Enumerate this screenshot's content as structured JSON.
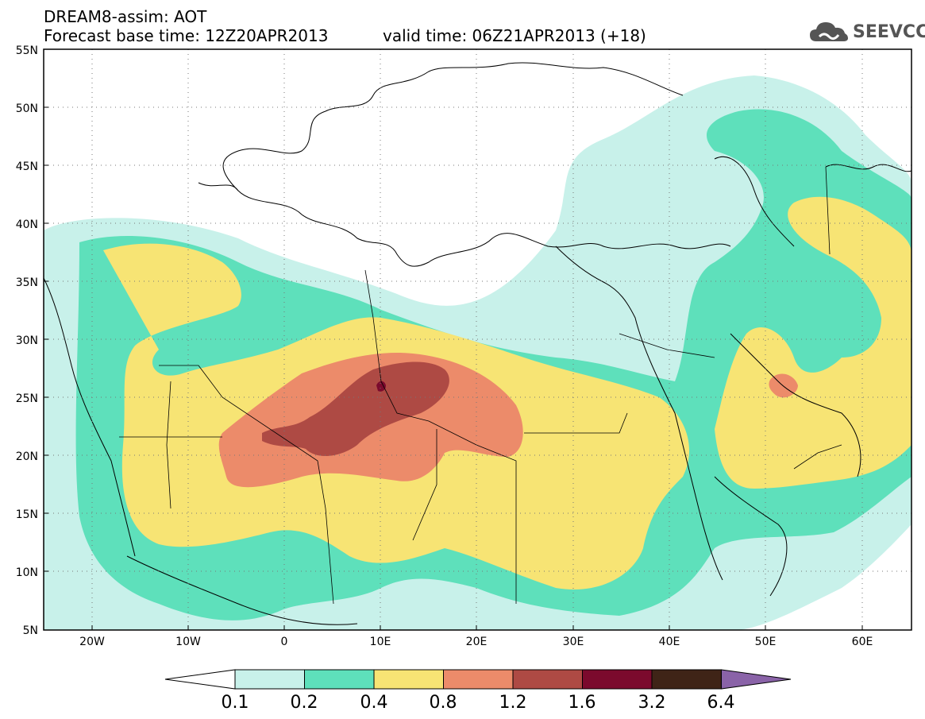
{
  "header": {
    "line1": "DREAM8-assim: AOT",
    "line2": "Forecast base time: 12Z20APR2013",
    "line3": "valid time: 06Z21APR2013 (+18)"
  },
  "logo": {
    "text": "SEEVCCC",
    "icon": "cloud-icon"
  },
  "axes": {
    "lat_labels": [
      "55N",
      "50N",
      "45N",
      "40N",
      "35N",
      "30N",
      "25N",
      "20N",
      "15N",
      "10N",
      "5N"
    ],
    "lon_labels": [
      "20W",
      "10W",
      "0",
      "10E",
      "20E",
      "30E",
      "40E",
      "50E",
      "60E"
    ]
  },
  "colorbar": {
    "labels": [
      "0.1",
      "0.2",
      "0.4",
      "0.8",
      "1.2",
      "1.6",
      "3.2",
      "6.4"
    ],
    "colors": [
      "#ffffff",
      "#c8f1ea",
      "#5ee0bb",
      "#f7e474",
      "#ec8b6a",
      "#ae4a44",
      "#7b0a2d",
      "#3f2417",
      "#8a63a8"
    ]
  }
}
